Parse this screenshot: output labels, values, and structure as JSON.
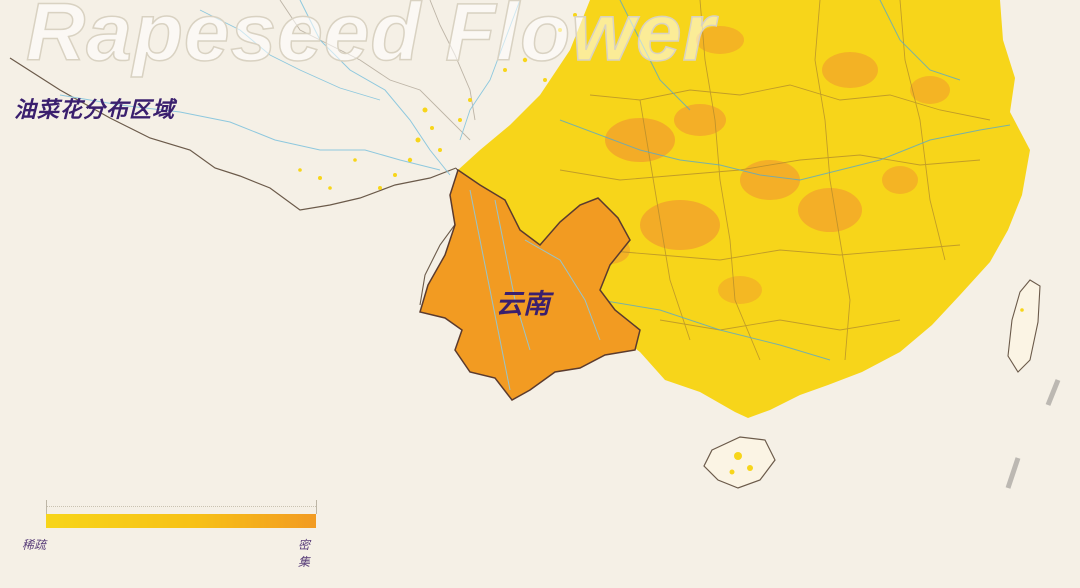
{
  "header": {
    "title_en": "Rapeseed Flower",
    "title_zh": "油菜花分布区域"
  },
  "map": {
    "highlight_province": "云南",
    "colors": {
      "background": "#f5f0e6",
      "distribution_yellow": "#f7d51a",
      "dense_orange": "#f2a52a",
      "yunnan_orange": "#f29b22",
      "border": "#6b5a4a",
      "river": "#8ec8de",
      "label_purple": "#3a1f6e"
    }
  },
  "legend": {
    "low_label": "稀疏",
    "high_label": "密集"
  }
}
